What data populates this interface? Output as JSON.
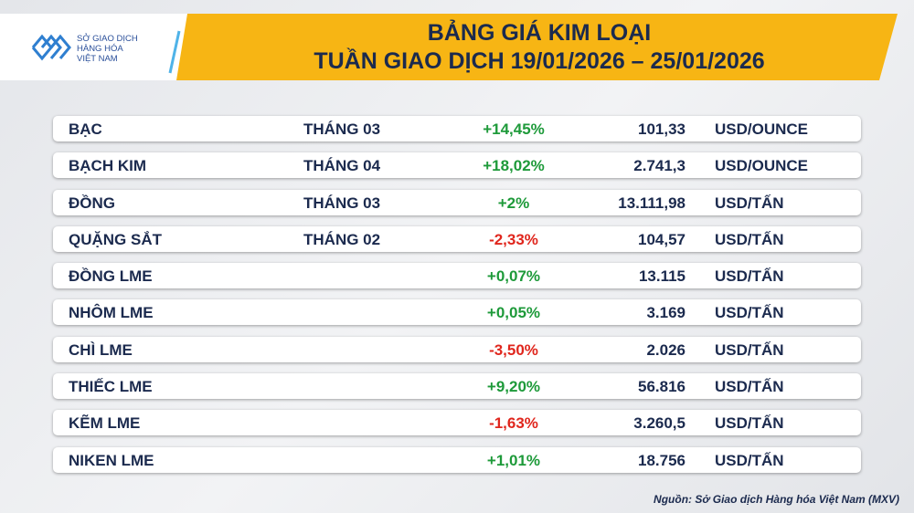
{
  "header": {
    "logo": [
      "SỞ GIAO DỊCH",
      "HÀNG HÓA",
      "VIỆT NAM"
    ],
    "title": [
      "BẢNG GIÁ KIM LOẠI",
      "TUẦN GIAO DỊCH 19/01/2026 – 25/01/2026"
    ]
  },
  "table": {
    "rows": [
      [
        "BẠC",
        "THÁNG 03",
        "+14,45%",
        "101,33",
        "USD/OUNCE"
      ],
      [
        "BẠCH KIM",
        "THÁNG 04",
        "+18,02%",
        "2.741,3",
        "USD/OUNCE"
      ],
      [
        "ĐỒNG",
        "THÁNG 03",
        "+2%",
        "13.111,98",
        "USD/TẤN"
      ],
      [
        "QUẶNG SẮT",
        "THÁNG 02",
        "-2,33%",
        "104,57",
        "USD/TẤN"
      ],
      [
        "ĐỒNG LME",
        "",
        "+0,07%",
        "13.115",
        "USD/TẤN"
      ],
      [
        "NHÔM LME",
        "",
        "+0,05%",
        "3.169",
        "USD/TẤN"
      ],
      [
        "CHÌ LME",
        "",
        "-3,50%",
        "2.026",
        "USD/TẤN"
      ],
      [
        "THIẾC LME",
        "",
        "+9,20%",
        "56.816",
        "USD/TẤN"
      ],
      [
        "KẼM LME",
        "",
        "-1,63%",
        "3.260,5",
        "USD/TẤN"
      ],
      [
        "NIKEN LME",
        "",
        "+1,01%",
        "18.756",
        "USD/TẤN"
      ]
    ]
  },
  "source": "Nguồn: Sở Giao dịch Hàng hóa Việt Nam (MXV)"
}
